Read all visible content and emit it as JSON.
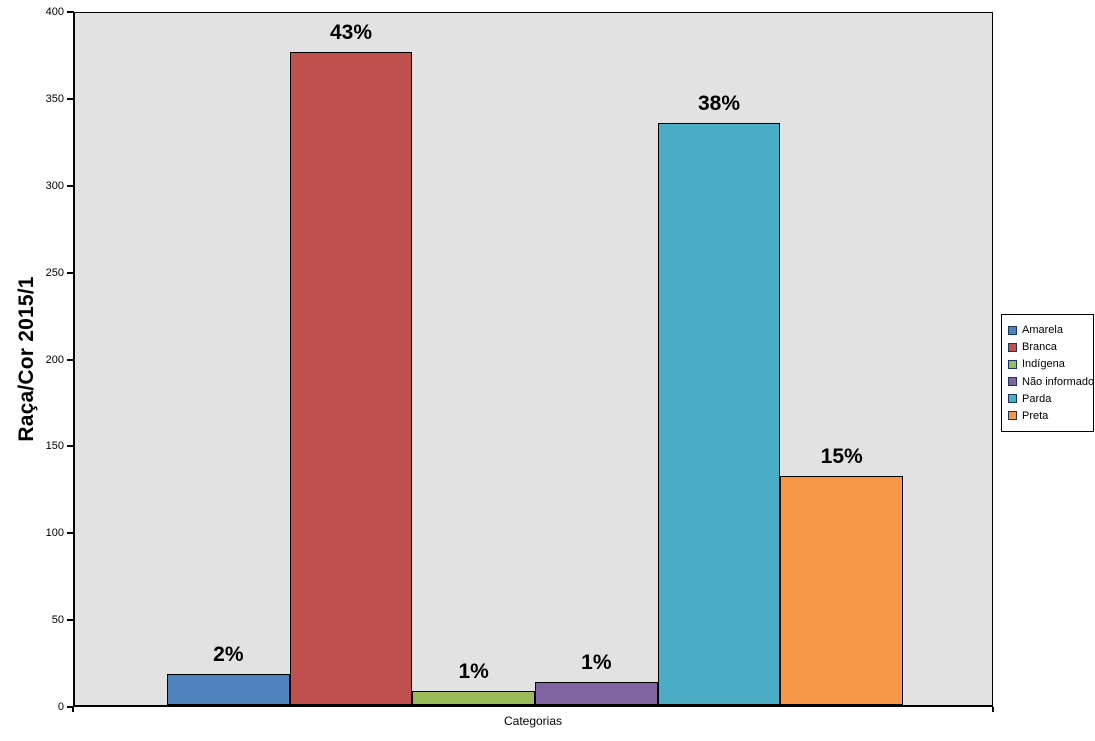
{
  "chart_data": {
    "type": "bar",
    "title": "",
    "ylabel": "Raça/Cor 2015/1",
    "xlabel": "Categorias",
    "ylim": [
      0,
      400
    ],
    "yticks": [
      0,
      50,
      100,
      150,
      200,
      250,
      300,
      350,
      400
    ],
    "grid": false,
    "legend_position": "right",
    "plot_background": "#E2E2E2",
    "bar_border_color": "#000000",
    "categories": [
      "Amarela",
      "Branca",
      "Indígena",
      "Não informado",
      "Parda",
      "Preta"
    ],
    "values": [
      18,
      376,
      8,
      13,
      335,
      132
    ],
    "data_labels": [
      "2%",
      "43%",
      "1%",
      "1%",
      "38%",
      "15%"
    ],
    "colors": [
      "#4F81BD",
      "#C0504D",
      "#9BBB59",
      "#8064A2",
      "#4BACC6",
      "#F79646"
    ]
  }
}
